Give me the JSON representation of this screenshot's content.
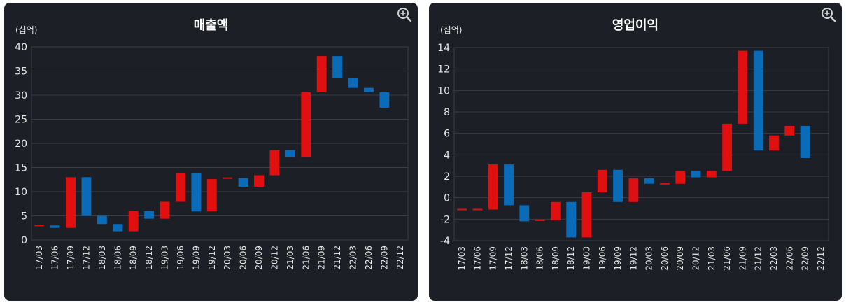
{
  "colors": {
    "up": "#e01010",
    "down": "#0a6bb8",
    "panel": "#1c1f26",
    "grid": "#3a3d45",
    "text": "#e6e6e6"
  },
  "chart_data": [
    {
      "type": "bar",
      "subtype": "waterfall-candle",
      "title": "매출액",
      "unit": "(십억)",
      "categories": [
        "17/03",
        "17/06",
        "17/09",
        "17/12",
        "18/03",
        "18/06",
        "18/09",
        "18/12",
        "19/03",
        "19/06",
        "19/09",
        "19/12",
        "20/03",
        "20/06",
        "20/09",
        "20/12",
        "21/03",
        "21/06",
        "21/09",
        "21/12",
        "22/03",
        "22/06",
        "22/09",
        "22/12"
      ],
      "values": [
        3.0,
        2.5,
        13.0,
        5.0,
        3.3,
        1.8,
        6.0,
        4.4,
        7.9,
        13.8,
        5.9,
        12.6,
        12.8,
        11.0,
        13.4,
        18.6,
        17.2,
        30.6,
        38.1,
        33.5,
        31.5,
        30.6,
        27.4,
        null
      ],
      "ylim": [
        0,
        40
      ],
      "yticks": [
        0,
        5,
        10,
        15,
        20,
        25,
        30,
        35,
        40
      ],
      "grid": true
    },
    {
      "type": "bar",
      "subtype": "waterfall-candle",
      "title": "영업이익",
      "unit": "(십억)",
      "categories": [
        "17/03",
        "17/06",
        "17/09",
        "17/12",
        "18/03",
        "18/06",
        "18/09",
        "18/12",
        "19/03",
        "19/06",
        "19/09",
        "19/12",
        "20/03",
        "20/06",
        "20/09",
        "20/12",
        "21/03",
        "21/06",
        "21/09",
        "21/12",
        "22/03",
        "22/06",
        "22/09",
        "22/12"
      ],
      "values": [
        -1.1,
        -1.1,
        3.1,
        -0.7,
        -2.2,
        -2.1,
        -0.4,
        -3.7,
        0.5,
        2.6,
        -0.4,
        1.8,
        1.3,
        1.3,
        2.5,
        1.9,
        2.5,
        6.9,
        13.7,
        4.4,
        5.8,
        6.7,
        3.7,
        null
      ],
      "ylim": [
        -4,
        14
      ],
      "yticks": [
        -4,
        -2,
        0,
        2,
        4,
        6,
        8,
        10,
        12,
        14
      ],
      "grid": true
    }
  ]
}
